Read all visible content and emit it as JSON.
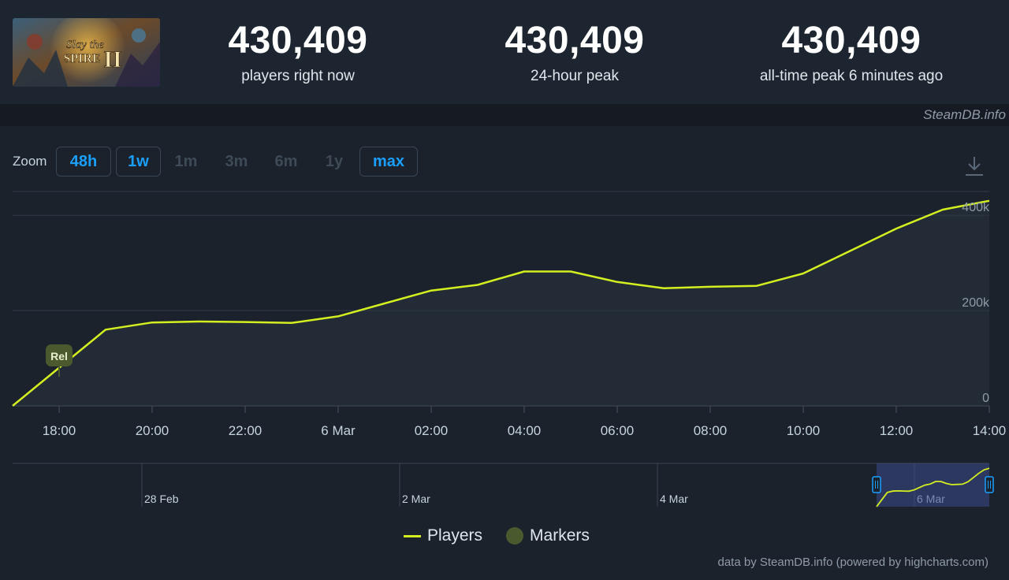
{
  "header": {
    "game_art": {
      "title_line1": "Slay the",
      "title_line2": "SPIRE",
      "numeral": "II"
    },
    "stats": [
      {
        "value": "430,409",
        "label": "players right now"
      },
      {
        "value": "430,409",
        "label": "24-hour peak"
      },
      {
        "value": "430,409",
        "label": "all-time peak 6 minutes ago"
      }
    ],
    "brand": "SteamDB.info"
  },
  "zoom": {
    "label": "Zoom",
    "buttons": [
      {
        "label": "48h",
        "active": true
      },
      {
        "label": "1w",
        "active": true
      },
      {
        "label": "1m",
        "active": false
      },
      {
        "label": "3m",
        "active": false
      },
      {
        "label": "6m",
        "active": false
      },
      {
        "label": "1y",
        "active": false
      },
      {
        "label": "max",
        "active": true
      }
    ],
    "download_icon": "download-icon"
  },
  "chart_data": {
    "type": "line",
    "title": "",
    "xlabel": "",
    "ylabel": "",
    "ylim": [
      0,
      420000
    ],
    "y_ticks": [
      {
        "value": 0,
        "label": "0"
      },
      {
        "value": 200000,
        "label": "200k"
      },
      {
        "value": 400000,
        "label": "400k"
      }
    ],
    "x_hours_ticks": [
      {
        "hour": 18,
        "label": "18:00"
      },
      {
        "hour": 20,
        "label": "20:00"
      },
      {
        "hour": 22,
        "label": "22:00"
      },
      {
        "hour": 24,
        "label": "6 Mar"
      },
      {
        "hour": 26,
        "label": "02:00"
      },
      {
        "hour": 28,
        "label": "04:00"
      },
      {
        "hour": 30,
        "label": "06:00"
      },
      {
        "hour": 32,
        "label": "08:00"
      },
      {
        "hour": 34,
        "label": "10:00"
      },
      {
        "hour": 36,
        "label": "12:00"
      },
      {
        "hour": 38,
        "label": "14:00"
      }
    ],
    "series": [
      {
        "name": "Players",
        "color": "#d4ef20",
        "points": [
          {
            "hour": 17.0,
            "value": 0
          },
          {
            "hour": 18.0,
            "value": 80000
          },
          {
            "hour": 19.0,
            "value": 160000
          },
          {
            "hour": 20.0,
            "value": 175000
          },
          {
            "hour": 21.0,
            "value": 177000
          },
          {
            "hour": 22.0,
            "value": 176000
          },
          {
            "hour": 23.0,
            "value": 174000
          },
          {
            "hour": 24.0,
            "value": 188000
          },
          {
            "hour": 25.0,
            "value": 215000
          },
          {
            "hour": 26.0,
            "value": 242000
          },
          {
            "hour": 27.0,
            "value": 254000
          },
          {
            "hour": 28.0,
            "value": 282000
          },
          {
            "hour": 29.0,
            "value": 282000
          },
          {
            "hour": 30.0,
            "value": 260000
          },
          {
            "hour": 31.0,
            "value": 247000
          },
          {
            "hour": 32.0,
            "value": 250000
          },
          {
            "hour": 33.0,
            "value": 252000
          },
          {
            "hour": 34.0,
            "value": 278000
          },
          {
            "hour": 35.0,
            "value": 325000
          },
          {
            "hour": 36.0,
            "value": 372000
          },
          {
            "hour": 37.0,
            "value": 412000
          },
          {
            "hour": 38.0,
            "value": 430409
          }
        ]
      }
    ],
    "markers": [
      {
        "hour": 18.0,
        "label": "Rel"
      }
    ],
    "navigator": {
      "ticks": [
        "28 Feb",
        "2 Mar",
        "4 Mar",
        "6 Mar"
      ]
    },
    "legend": {
      "items": [
        {
          "name": "Players",
          "color": "#d4ef20"
        },
        {
          "name": "Markers",
          "color": "#4b5a2e"
        }
      ],
      "placement": "bottom-center"
    },
    "grid": true
  },
  "credits": "data by SteamDB.info (powered by highcharts.com)"
}
